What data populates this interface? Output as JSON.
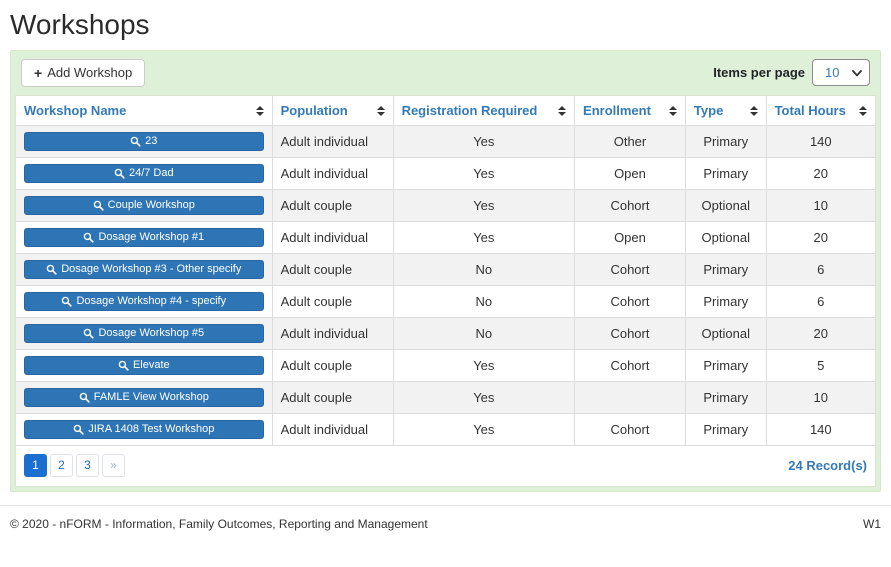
{
  "page": {
    "title": "Workshops"
  },
  "toolbar": {
    "add_button": "Add Workshop",
    "items_per_page_label": "Items per page",
    "items_per_page_value": "10"
  },
  "table": {
    "columns": [
      {
        "key": "name",
        "label": "Workshop Name"
      },
      {
        "key": "population",
        "label": "Population"
      },
      {
        "key": "registration",
        "label": "Registration Required"
      },
      {
        "key": "enrollment",
        "label": "Enrollment"
      },
      {
        "key": "type",
        "label": "Type"
      },
      {
        "key": "hours",
        "label": "Total Hours"
      }
    ],
    "rows": [
      {
        "name": "23",
        "population": "Adult individual",
        "registration": "Yes",
        "enrollment": "Other",
        "type": "Primary",
        "hours": "140"
      },
      {
        "name": "24/7 Dad",
        "population": "Adult individual",
        "registration": "Yes",
        "enrollment": "Open",
        "type": "Primary",
        "hours": "20"
      },
      {
        "name": "Couple Workshop",
        "population": "Adult couple",
        "registration": "Yes",
        "enrollment": "Cohort",
        "type": "Optional",
        "hours": "10"
      },
      {
        "name": "Dosage Workshop #1",
        "population": "Adult individual",
        "registration": "Yes",
        "enrollment": "Open",
        "type": "Optional",
        "hours": "20"
      },
      {
        "name": "Dosage Workshop #3 - Other specify",
        "population": "Adult couple",
        "registration": "No",
        "enrollment": "Cohort",
        "type": "Primary",
        "hours": "6"
      },
      {
        "name": "Dosage Workshop #4 - specify",
        "population": "Adult couple",
        "registration": "No",
        "enrollment": "Cohort",
        "type": "Primary",
        "hours": "6"
      },
      {
        "name": "Dosage Workshop #5",
        "population": "Adult individual",
        "registration": "No",
        "enrollment": "Cohort",
        "type": "Optional",
        "hours": "20"
      },
      {
        "name": "Elevate",
        "population": "Adult couple",
        "registration": "Yes",
        "enrollment": "Cohort",
        "type": "Primary",
        "hours": "5"
      },
      {
        "name": "FAMLE View Workshop",
        "population": "Adult couple",
        "registration": "Yes",
        "enrollment": "",
        "type": "Primary",
        "hours": "10"
      },
      {
        "name": "JIRA 1408 Test Workshop",
        "population": "Adult individual",
        "registration": "Yes",
        "enrollment": "Cohort",
        "type": "Primary",
        "hours": "140"
      }
    ]
  },
  "pagination": {
    "pages": [
      {
        "label": "1",
        "key": "1",
        "active": true
      },
      {
        "label": "2",
        "key": "2",
        "active": false
      },
      {
        "label": "3",
        "key": "3",
        "active": false
      },
      {
        "label": "»",
        "key": "next",
        "active": false,
        "muted": true
      }
    ],
    "records": "24 Record(s)"
  },
  "footer": {
    "copyright": "© 2020 - nFORM - Information, Family Outcomes, Reporting and Management",
    "version": "W1"
  },
  "colors": {
    "accent_blue": "#337ab7",
    "row_button_blue": "#2e75b6",
    "panel_green": "#dff0d8",
    "panel_border_green": "#d6e9c6",
    "active_page_blue": "#1b6fd0",
    "stripe_gray": "#f2f2f2",
    "border_gray": "#dddddd"
  }
}
